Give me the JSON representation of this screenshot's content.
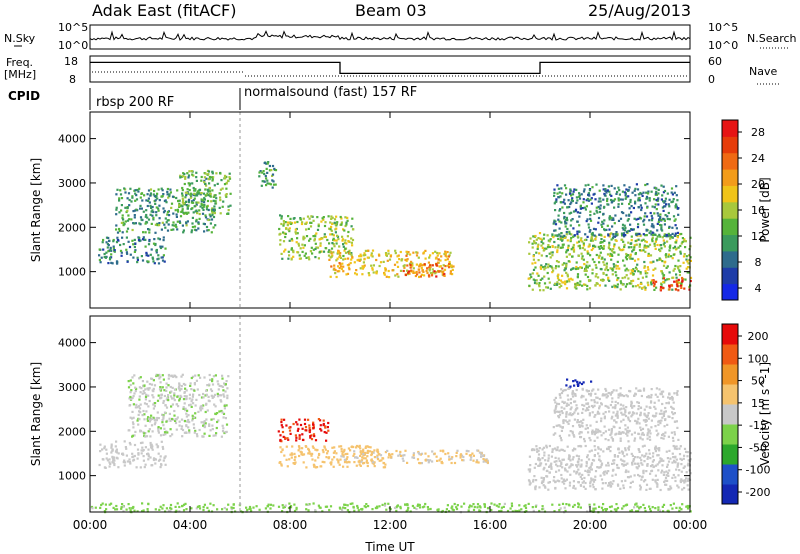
{
  "header": {
    "station": "Adak East (fitACF)",
    "beam": "Beam 03",
    "date": "25/Aug/2013"
  },
  "sky_panel": {
    "left_label": "N.Sky",
    "right_label": "N.Search",
    "left_ticks": [
      "10^5",
      "10^0"
    ],
    "right_ticks": [
      "10^5",
      "10^0"
    ]
  },
  "freq_panel": {
    "left_label_line1": "Freq.",
    "left_label_line2": "[MHz]",
    "right_label": "Nave",
    "left_ticks": [
      "18",
      "8"
    ],
    "right_ticks": [
      "60",
      "0"
    ],
    "freq_levels": [
      {
        "from_hour": 0,
        "to_hour": 10,
        "level": 0.8
      },
      {
        "from_hour": 10,
        "to_hour": 18,
        "level": 0.3
      },
      {
        "from_hour": 18,
        "to_hour": 24,
        "level": 0.8
      }
    ]
  },
  "cpid_panel": {
    "label": "CPID",
    "modes": [
      {
        "name": "rbsp 200 RF",
        "from_hour": 0
      },
      {
        "name": "normalsound (fast) 157 RF",
        "from_hour": 6
      }
    ]
  },
  "colors": {
    "power_scale": [
      "#1428e6",
      "#1e3ca8",
      "#2e6b8c",
      "#3a9a5c",
      "#55b33a",
      "#a8c83c",
      "#f0c419",
      "#f39c1a",
      "#f06a14",
      "#e63c0a",
      "#e61414"
    ],
    "velocity_scale": [
      "#e60a0a",
      "#f05a14",
      "#f09628",
      "#f5c36e",
      "#c8c8c8",
      "#7cd24a",
      "#2ca82c",
      "#1e50c8",
      "#1428b4"
    ]
  },
  "chart_data": [
    {
      "type": "heatmap",
      "title": "",
      "xlabel": "",
      "ylabel": "Slant Range [km]",
      "x_ticks": [
        "00:00",
        "04:00",
        "08:00",
        "12:00",
        "16:00",
        "20:00",
        "00:00"
      ],
      "y_ticks": [
        "1000",
        "2000",
        "3000",
        "4000"
      ],
      "xlim_hours": [
        0,
        24
      ],
      "ylim": [
        180,
        4600
      ],
      "colorbar": {
        "label": "Power [dB]",
        "ticks": [
          "4",
          "8",
          "12",
          "16",
          "20",
          "24",
          "28"
        ],
        "range": [
          0,
          30
        ]
      },
      "echo_regions": [
        {
          "t_start": 0.3,
          "t_end": 3.0,
          "r_start": 1200,
          "r_end": 1800,
          "value": 8
        },
        {
          "t_start": 1.0,
          "t_end": 5.0,
          "r_start": 1900,
          "r_end": 2900,
          "value": 10
        },
        {
          "t_start": 3.5,
          "t_end": 5.6,
          "r_start": 2300,
          "r_end": 3300,
          "value": 12
        },
        {
          "t_start": 6.7,
          "t_end": 7.5,
          "r_start": 2900,
          "r_end": 3500,
          "value": 10
        },
        {
          "t_start": 7.5,
          "t_end": 10.5,
          "r_start": 1300,
          "r_end": 2300,
          "value": 14
        },
        {
          "t_start": 9.5,
          "t_end": 14.5,
          "r_start": 900,
          "r_end": 1500,
          "value": 18
        },
        {
          "t_start": 12.5,
          "t_end": 14.5,
          "r_start": 900,
          "r_end": 1200,
          "value": 24
        },
        {
          "t_start": 17.5,
          "t_end": 24.0,
          "r_start": 600,
          "r_end": 1900,
          "value": 14
        },
        {
          "t_start": 22.5,
          "t_end": 24.0,
          "r_start": 600,
          "r_end": 900,
          "value": 26
        },
        {
          "t_start": 18.5,
          "t_end": 23.5,
          "r_start": 1800,
          "r_end": 3000,
          "value": 8
        }
      ]
    },
    {
      "type": "heatmap",
      "title": "",
      "xlabel": "Time UT",
      "ylabel": "Slant Range [km]",
      "x_ticks": [
        "00:00",
        "04:00",
        "08:00",
        "12:00",
        "16:00",
        "20:00",
        "00:00"
      ],
      "y_ticks": [
        "1000",
        "2000",
        "3000",
        "4000"
      ],
      "xlim_hours": [
        0,
        24
      ],
      "ylim": [
        180,
        4600
      ],
      "colorbar": {
        "label": "Velocity [m s^-1]",
        "ticks": [
          "200",
          "100",
          "50",
          "15",
          "-15",
          "-50",
          "-100",
          "-200"
        ],
        "range": [
          -250,
          250
        ]
      },
      "echo_regions": [
        {
          "t_start": 0.3,
          "t_end": 3.0,
          "r_start": 1200,
          "r_end": 1800,
          "value": 0
        },
        {
          "t_start": 1.5,
          "t_end": 5.5,
          "r_start": 1900,
          "r_end": 3300,
          "value": -20
        },
        {
          "t_start": 7.5,
          "t_end": 9.5,
          "r_start": 1800,
          "r_end": 2300,
          "value": 200
        },
        {
          "t_start": 7.5,
          "t_end": 12.0,
          "r_start": 1200,
          "r_end": 1700,
          "value": 60
        },
        {
          "t_start": 10.0,
          "t_end": 16.0,
          "r_start": 1300,
          "r_end": 1600,
          "value": 30
        },
        {
          "t_start": 19.0,
          "t_end": 20.0,
          "r_start": 3000,
          "r_end": 3200,
          "value": -220
        },
        {
          "t_start": 17.5,
          "t_end": 24.0,
          "r_start": 700,
          "r_end": 1700,
          "value": 0
        },
        {
          "t_start": 18.5,
          "t_end": 23.5,
          "r_start": 1800,
          "r_end": 3000,
          "value": -10
        },
        {
          "t_start": 0.0,
          "t_end": 24.0,
          "r_start": 200,
          "r_end": 400,
          "value": -40
        }
      ]
    }
  ]
}
